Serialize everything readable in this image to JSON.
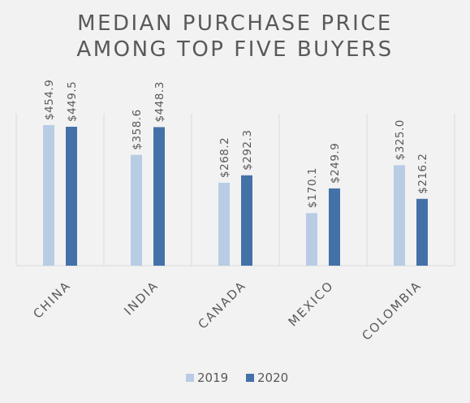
{
  "chart_data": {
    "type": "bar",
    "title": [
      "MEDIAN PURCHASE PRICE",
      "AMONG TOP FIVE BUYERS"
    ],
    "categories": [
      "CHINA",
      "INDIA",
      "CANADA",
      "MEXICO",
      "COLOMBIA"
    ],
    "series": [
      {
        "name": "2019",
        "color": "#b8cce4",
        "values": [
          454.9,
          358.6,
          268.2,
          170.1,
          325.0
        ],
        "labels": [
          "$454.9",
          "$358.6",
          "$268.2",
          "$170.1",
          "$325.0"
        ]
      },
      {
        "name": "2020",
        "color": "#4472a8",
        "values": [
          449.5,
          448.3,
          292.3,
          249.9,
          216.2
        ],
        "labels": [
          "$449.5",
          "$448.3",
          "$292.3",
          "$249.9",
          "$216.2"
        ]
      }
    ],
    "ylim": [
      0,
      460
    ],
    "xlabel": "",
    "ylabel": "",
    "grid": false,
    "category_separators": true,
    "legend_position": "bottom",
    "axis_color": "#d9d9d9",
    "text_color": "#595959"
  }
}
